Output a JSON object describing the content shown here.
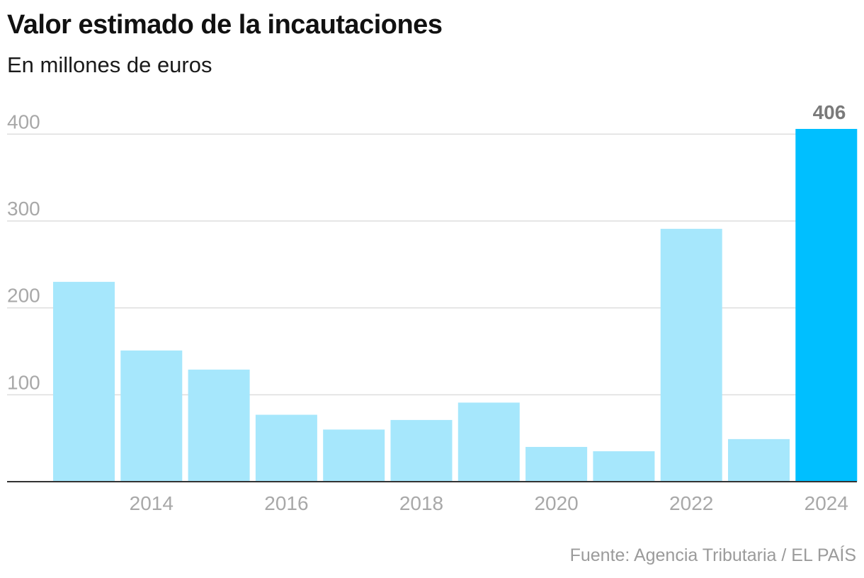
{
  "header": {
    "title": "Valor estimado de la incautaciones",
    "subtitle": "En millones de euros"
  },
  "footer": {
    "source": "Fuente: Agencia Tributaria / EL PAÍS"
  },
  "chart_data": {
    "type": "bar",
    "categories": [
      "2013",
      "2014",
      "2015",
      "2016",
      "2017",
      "2018",
      "2019",
      "2020",
      "2021",
      "2022",
      "2023",
      "2024"
    ],
    "values": [
      230,
      151,
      129,
      77,
      60,
      71,
      91,
      40,
      35,
      291,
      49,
      406
    ],
    "x_tick_labels": [
      "2014",
      "2016",
      "2018",
      "2020",
      "2022",
      "2024"
    ],
    "y_ticks": [
      100,
      200,
      300,
      400
    ],
    "ylim": [
      0,
      406
    ],
    "grid": true,
    "highlight": {
      "category": "2024",
      "label": "406"
    },
    "colors": {
      "bar": "#a6e7fc",
      "highlight_bar": "#00bfff",
      "grid": "#dddddd",
      "axis": "#333333",
      "tick_label": "#a8a8a8",
      "highlight_label": "#7a7a7a"
    }
  }
}
